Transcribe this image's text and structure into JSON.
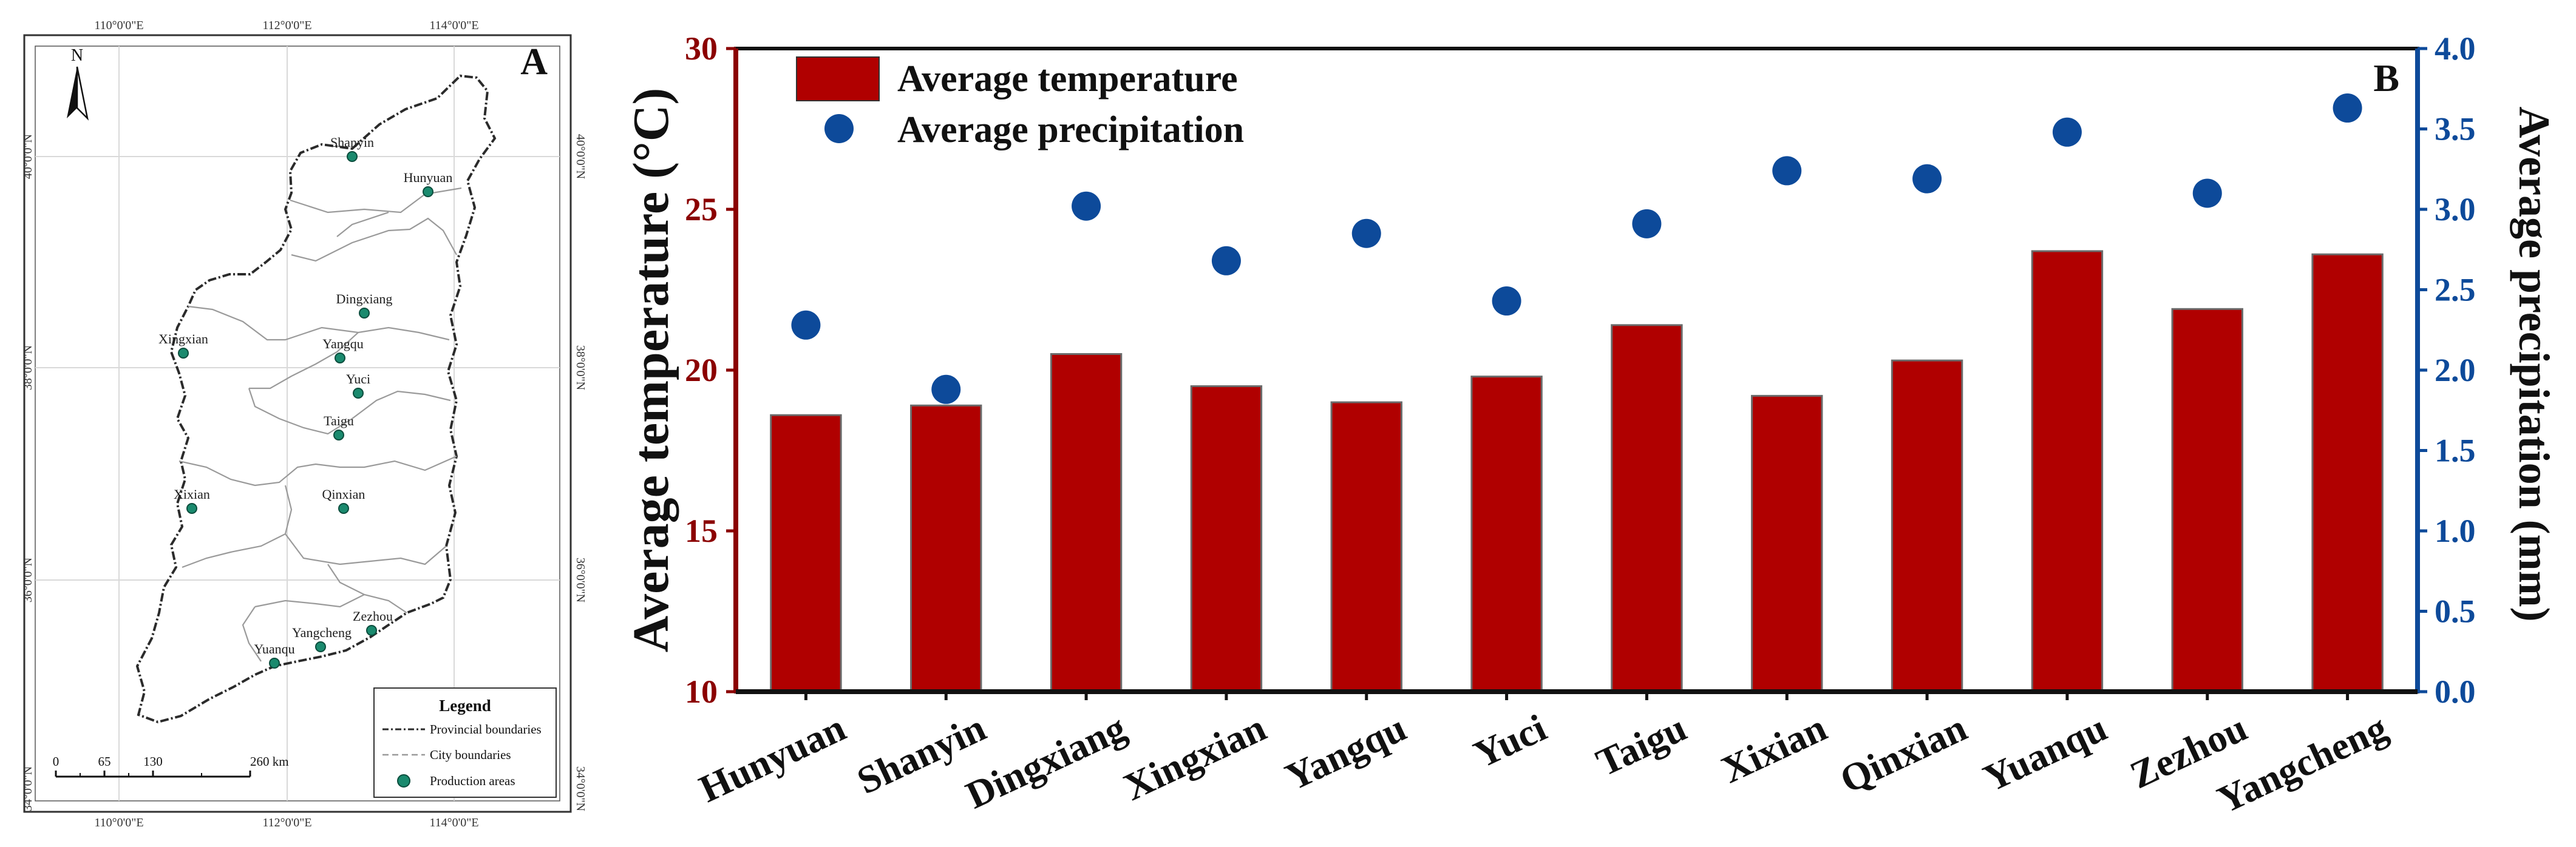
{
  "map": {
    "panel_label": "A",
    "north_label": "N",
    "lon_labels": [
      "110°0'0\"E",
      "112°0'0\"E",
      "114°0'0\"E"
    ],
    "lat_labels": [
      "40°0'0\"N",
      "38°0'0\"N",
      "36°0'0\"N",
      "34°0'0\"N"
    ],
    "sites": [
      "Shanyin",
      "Hunyuan",
      "Dingxiang",
      "Xingxian",
      "Yangqu",
      "Yuci",
      "Taigu",
      "Xixian",
      "Qinxian",
      "Zezhou",
      "Yangcheng",
      "Yuanqu"
    ],
    "legend": {
      "title": "Legend",
      "provincial": "Provincial boundaries",
      "city": "City boundaries",
      "production": "Production areas"
    },
    "scale_ticks": [
      "0",
      "65",
      "130",
      "260 km"
    ],
    "colors": {
      "site_fill": "#1a8a6e",
      "site_stroke": "#0b4d3d"
    }
  },
  "chart_data": {
    "type": "bar",
    "panel_label": "B",
    "categories": [
      "Hunyuan",
      "Shanyin",
      "Dingxiang",
      "Xingxian",
      "Yangqu",
      "Yuci",
      "Taigu",
      "Xixian",
      "Qinxian",
      "Yuanqu",
      "Zezhou",
      "Yangcheng"
    ],
    "series": [
      {
        "name": "Average temperature",
        "kind": "bar",
        "axis": "left",
        "color": "#b00000",
        "values": [
          18.6,
          18.9,
          20.5,
          19.5,
          19.0,
          19.8,
          21.4,
          19.2,
          20.3,
          23.7,
          21.9,
          23.6
        ]
      },
      {
        "name": "Average precipitation",
        "kind": "scatter",
        "axis": "right",
        "color": "#0d4a9a",
        "values": [
          2.28,
          1.88,
          3.02,
          2.68,
          2.85,
          2.43,
          2.91,
          3.24,
          3.19,
          3.48,
          3.1,
          3.63
        ]
      }
    ],
    "ylabel_left": "Average temperature (°C)",
    "ylabel_right": "Average precipitation (mm)",
    "ylim_left": [
      10,
      30
    ],
    "ylim_right": [
      0,
      4
    ],
    "yticks_left": [
      "10",
      "15",
      "20",
      "25",
      "30"
    ],
    "yticks_right": [
      "0.0",
      "0.5",
      "1.0",
      "1.5",
      "2.0",
      "2.5",
      "3.0",
      "3.5",
      "4.0"
    ],
    "legend_location": "top-left",
    "left_color": "#8b0000",
    "right_color": "#0d4a9a"
  }
}
